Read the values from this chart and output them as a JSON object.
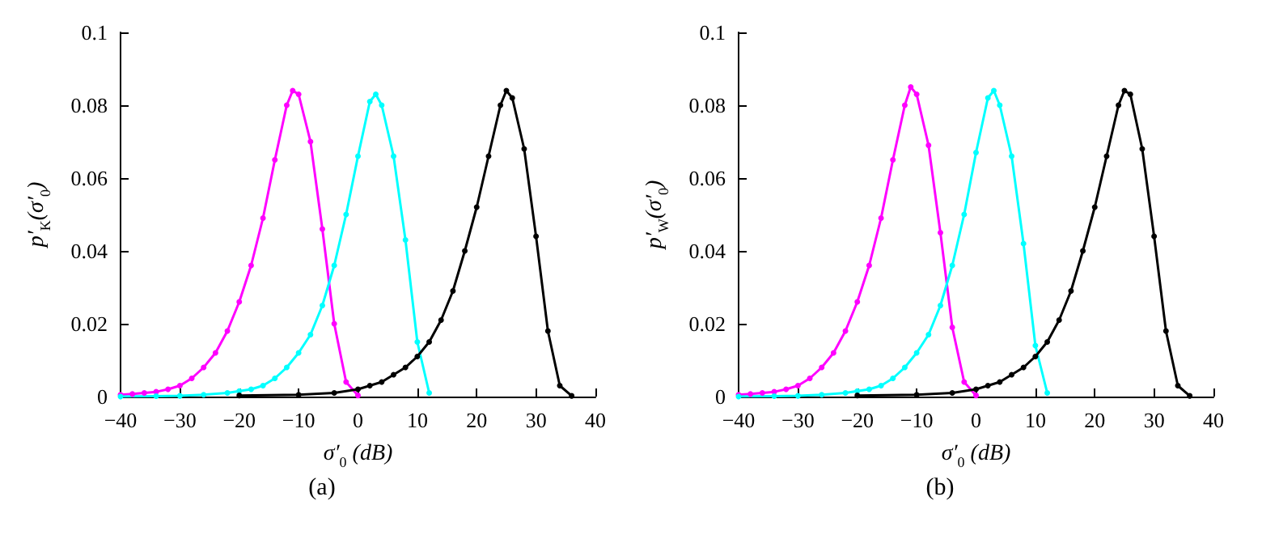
{
  "chart_data": [
    {
      "type": "line",
      "xlabel": "σ′$_{0}$ (dB)",
      "ylabel": "p′$_{K}$(σ′$_{0}$)",
      "annotations": [
        "(a)"
      ],
      "xlim": [
        -40,
        40
      ],
      "xticks": [
        -40,
        -30,
        -20,
        -10,
        0,
        10,
        20,
        30,
        40
      ],
      "ylim": [
        0,
        0.1
      ],
      "yticks": [
        0,
        0.02,
        0.04,
        0.06,
        0.08,
        0.1
      ],
      "grid": false,
      "marker": "circle",
      "line_style": "solid",
      "series": [
        {
          "color": "#ff00ff",
          "x": [
            -40,
            -38,
            -36,
            -34,
            -32,
            -30,
            -28,
            -26,
            -24,
            -22,
            -20,
            -18,
            -16,
            -14,
            -12,
            -11,
            -10,
            -8,
            -6,
            -4,
            -2,
            0
          ],
          "values": [
            0.0005,
            0.0007,
            0.001,
            0.0013,
            0.002,
            0.003,
            0.005,
            0.008,
            0.012,
            0.018,
            0.026,
            0.036,
            0.049,
            0.065,
            0.08,
            0.084,
            0.083,
            0.07,
            0.046,
            0.02,
            0.004,
            0.0003
          ]
        },
        {
          "color": "#00ffff",
          "x": [
            -40,
            -34,
            -30,
            -26,
            -22,
            -20,
            -18,
            -16,
            -14,
            -12,
            -10,
            -8,
            -6,
            -4,
            -2,
            0,
            2,
            3,
            4,
            6,
            8,
            10,
            12
          ],
          "values": [
            0,
            0.0001,
            0.0002,
            0.0005,
            0.001,
            0.0015,
            0.002,
            0.003,
            0.005,
            0.008,
            0.012,
            0.017,
            0.025,
            0.036,
            0.05,
            0.066,
            0.081,
            0.083,
            0.08,
            0.066,
            0.043,
            0.015,
            0.001
          ]
        },
        {
          "color": "#000000",
          "x": [
            -20,
            -10,
            -4,
            0,
            2,
            4,
            6,
            8,
            10,
            12,
            14,
            16,
            18,
            20,
            22,
            24,
            25,
            26,
            28,
            30,
            32,
            34,
            36
          ],
          "values": [
            0.0003,
            0.0005,
            0.001,
            0.002,
            0.003,
            0.004,
            0.006,
            0.008,
            0.011,
            0.015,
            0.021,
            0.029,
            0.04,
            0.052,
            0.066,
            0.08,
            0.084,
            0.082,
            0.068,
            0.044,
            0.018,
            0.003,
            0.0002
          ]
        }
      ]
    },
    {
      "type": "line",
      "xlabel": "σ′$_{0}$ (dB)",
      "ylabel": "p′$_{W}$(σ′$_{0}$)",
      "annotations": [
        "(b)"
      ],
      "xlim": [
        -40,
        40
      ],
      "xticks": [
        -40,
        -30,
        -20,
        -10,
        0,
        10,
        20,
        30,
        40
      ],
      "ylim": [
        0,
        0.1
      ],
      "yticks": [
        0,
        0.02,
        0.04,
        0.06,
        0.08,
        0.1
      ],
      "grid": false,
      "marker": "circle",
      "line_style": "solid",
      "series": [
        {
          "color": "#ff00ff",
          "x": [
            -40,
            -38,
            -36,
            -34,
            -32,
            -30,
            -28,
            -26,
            -24,
            -22,
            -20,
            -18,
            -16,
            -14,
            -12,
            -11,
            -10,
            -8,
            -6,
            -4,
            -2,
            0
          ],
          "values": [
            0.0005,
            0.0007,
            0.001,
            0.0013,
            0.002,
            0.003,
            0.005,
            0.008,
            0.012,
            0.018,
            0.026,
            0.036,
            0.049,
            0.065,
            0.08,
            0.085,
            0.083,
            0.069,
            0.045,
            0.019,
            0.004,
            0.0003
          ]
        },
        {
          "color": "#00ffff",
          "x": [
            -40,
            -34,
            -30,
            -26,
            -22,
            -20,
            -18,
            -16,
            -14,
            -12,
            -10,
            -8,
            -6,
            -4,
            -2,
            0,
            2,
            3,
            4,
            6,
            8,
            10,
            12
          ],
          "values": [
            0,
            0.0001,
            0.0002,
            0.0005,
            0.001,
            0.0015,
            0.002,
            0.003,
            0.005,
            0.008,
            0.012,
            0.017,
            0.025,
            0.036,
            0.05,
            0.067,
            0.082,
            0.084,
            0.08,
            0.066,
            0.042,
            0.014,
            0.001
          ]
        },
        {
          "color": "#000000",
          "x": [
            -20,
            -10,
            -4,
            0,
            2,
            4,
            6,
            8,
            10,
            12,
            14,
            16,
            18,
            20,
            22,
            24,
            25,
            26,
            28,
            30,
            32,
            34,
            36
          ],
          "values": [
            0.0003,
            0.0005,
            0.001,
            0.002,
            0.003,
            0.004,
            0.006,
            0.008,
            0.011,
            0.015,
            0.021,
            0.029,
            0.04,
            0.052,
            0.066,
            0.08,
            0.084,
            0.083,
            0.068,
            0.044,
            0.018,
            0.003,
            0.0002
          ]
        }
      ]
    }
  ]
}
